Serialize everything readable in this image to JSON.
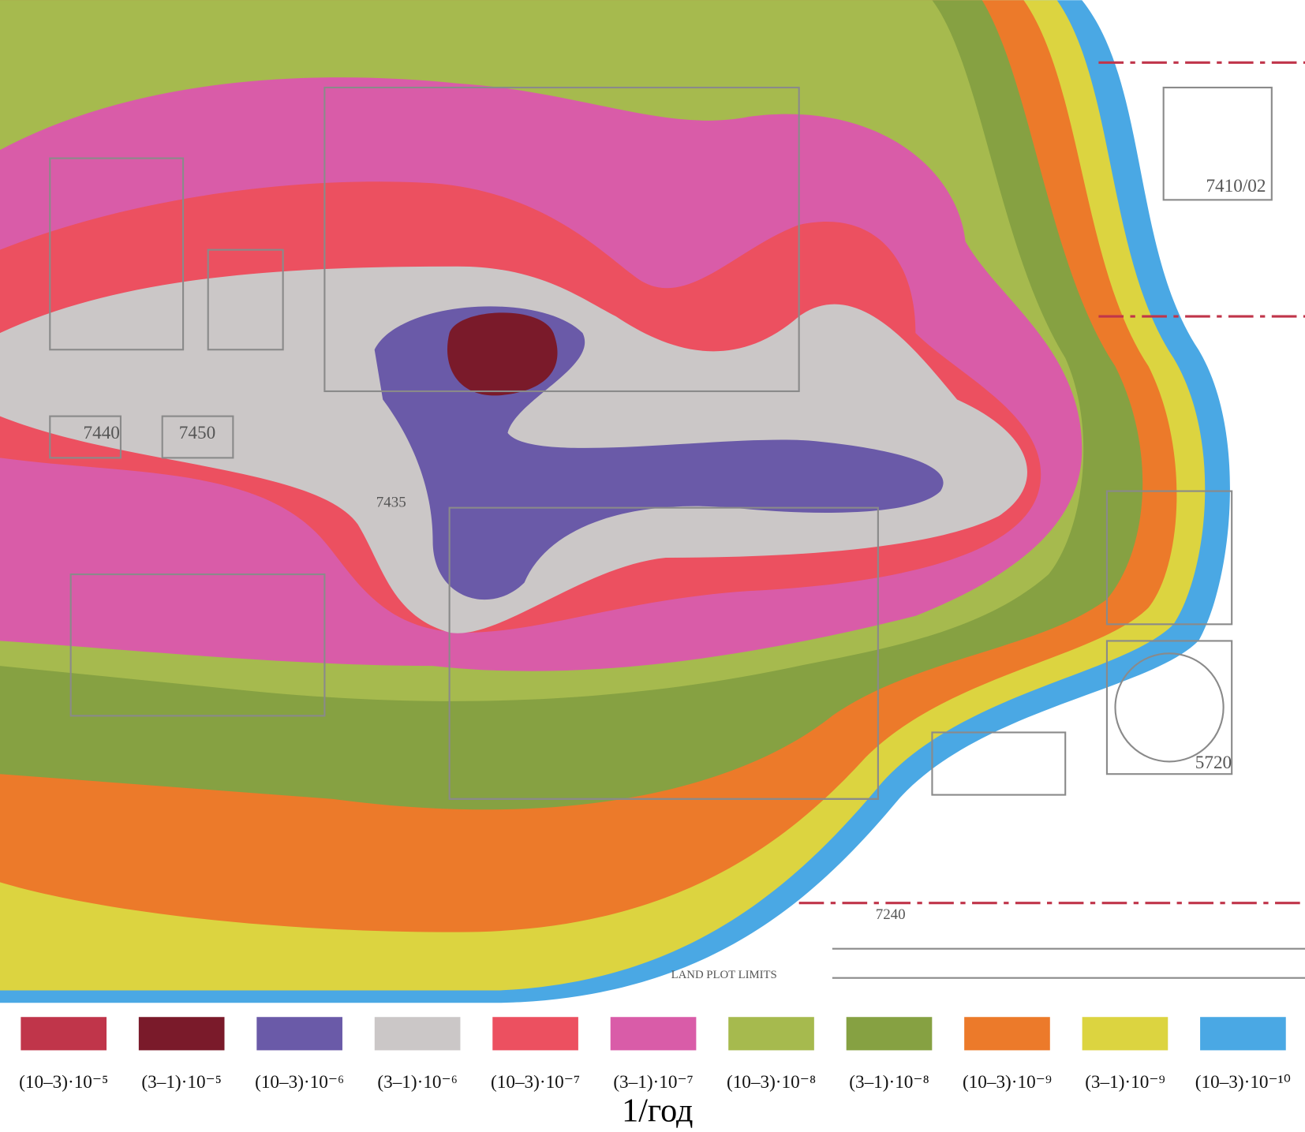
{
  "map": {
    "legend": [
      {
        "label": "(10–3)·10⁻⁵",
        "color": "#c0354a"
      },
      {
        "label": "(3–1)·10⁻⁵",
        "color": "#7a1a2a"
      },
      {
        "label": "(10–3)·10⁻⁶",
        "color": "#6a5aa8"
      },
      {
        "label": "(3–1)·10⁻⁶",
        "color": "#cbc7c7"
      },
      {
        "label": "(10–3)·10⁻⁷",
        "color": "#ec5060"
      },
      {
        "label": "(3–1)·10⁻⁷",
        "color": "#d95ca8"
      },
      {
        "label": "(10–3)·10⁻⁸",
        "color": "#a6ba4e"
      },
      {
        "label": "(3–1)·10⁻⁸",
        "color": "#86a142"
      },
      {
        "label": "(10–3)·10⁻⁹",
        "color": "#ec7a2a"
      },
      {
        "label": "(3–1)·10⁻⁹",
        "color": "#dcd440"
      },
      {
        "label": "(10–3)·10⁻¹⁰",
        "color": "#4aa8e4"
      }
    ],
    "unit": "1/год",
    "labels": [
      "7410/02",
      "7440",
      "7450",
      "7435",
      "5720",
      "7240",
      "LAND PLOT LIMITS"
    ]
  }
}
